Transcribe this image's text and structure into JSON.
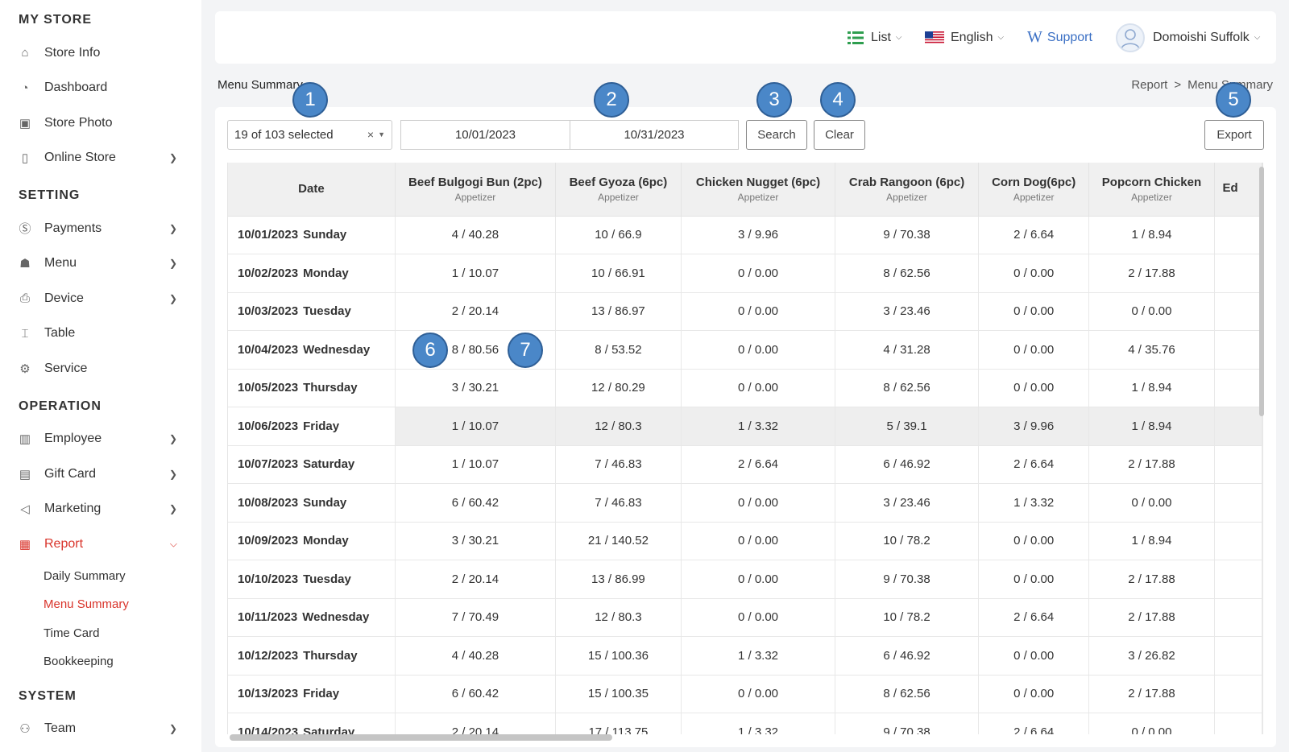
{
  "sidebar": {
    "sections": [
      {
        "title": "MY STORE",
        "items": [
          {
            "label": "Store Info",
            "icon": "store-icon",
            "chevron": false
          },
          {
            "label": "Dashboard",
            "icon": "dashboard-icon",
            "chevron": false
          },
          {
            "label": "Store Photo",
            "icon": "photo-icon",
            "chevron": false
          },
          {
            "label": "Online Store",
            "icon": "phone-icon",
            "chevron": true
          }
        ]
      },
      {
        "title": "SETTING",
        "items": [
          {
            "label": "Payments",
            "icon": "dollar-icon",
            "chevron": true
          },
          {
            "label": "Menu",
            "icon": "basket-icon",
            "chevron": true
          },
          {
            "label": "Device",
            "icon": "printer-icon",
            "chevron": true
          },
          {
            "label": "Table",
            "icon": "table-icon",
            "chevron": false
          },
          {
            "label": "Service",
            "icon": "gear-icon",
            "chevron": false
          }
        ]
      },
      {
        "title": "OPERATION",
        "items": [
          {
            "label": "Employee",
            "icon": "badge-icon",
            "chevron": true
          },
          {
            "label": "Gift Card",
            "icon": "gift-card-icon",
            "chevron": true
          },
          {
            "label": "Marketing",
            "icon": "megaphone-icon",
            "chevron": true
          },
          {
            "label": "Report",
            "icon": "report-icon",
            "chevron": true,
            "active": true,
            "expanded": true,
            "subitems": [
              {
                "label": "Daily Summary"
              },
              {
                "label": "Menu Summary",
                "active": true
              },
              {
                "label": "Time Card"
              },
              {
                "label": "Bookkeeping"
              }
            ]
          }
        ]
      },
      {
        "title": "SYSTEM",
        "items": [
          {
            "label": "Team",
            "icon": "team-icon",
            "chevron": true
          }
        ]
      }
    ]
  },
  "topbar": {
    "view_label": "List",
    "language_label": "English",
    "support_label": "Support",
    "user_name": "Domoishi Suffolk"
  },
  "page": {
    "title": "Menu Summary",
    "breadcrumb": [
      "Report",
      "Menu Summary"
    ],
    "breadcrumb_sep": ">"
  },
  "filters": {
    "items_selected": "19 of 103 selected",
    "clear_symbol": "×",
    "date_from": "10/01/2023",
    "date_to": "10/31/2023",
    "search_label": "Search",
    "clear_label": "Clear",
    "export_label": "Export"
  },
  "table": {
    "date_header": "Date",
    "columns": [
      {
        "name": "Beef Bulgogi Bun (2pc)",
        "category": "Appetizer"
      },
      {
        "name": "Beef Gyoza (6pc)",
        "category": "Appetizer"
      },
      {
        "name": "Chicken Nugget (6pc)",
        "category": "Appetizer"
      },
      {
        "name": "Crab Rangoon (6pc)",
        "category": "Appetizer"
      },
      {
        "name": "Corn Dog(6pc)",
        "category": "Appetizer"
      },
      {
        "name": "Popcorn Chicken",
        "category": "Appetizer"
      },
      {
        "name": "Ed",
        "category": ""
      }
    ],
    "rows": [
      {
        "date": "10/01/2023",
        "day": "Sunday",
        "cells": [
          "4 / 40.28",
          "10 / 66.9",
          "3 / 9.96",
          "9 / 70.38",
          "2 / 6.64",
          "1 / 8.94",
          ""
        ]
      },
      {
        "date": "10/02/2023",
        "day": "Monday",
        "cells": [
          "1 / 10.07",
          "10 / 66.91",
          "0 / 0.00",
          "8 / 62.56",
          "0 / 0.00",
          "2 / 17.88",
          ""
        ]
      },
      {
        "date": "10/03/2023",
        "day": "Tuesday",
        "cells": [
          "2 / 20.14",
          "13 / 86.97",
          "0 / 0.00",
          "3 / 23.46",
          "0 / 0.00",
          "0 / 0.00",
          ""
        ]
      },
      {
        "date": "10/04/2023",
        "day": "Wednesday",
        "cells": [
          "8 / 80.56",
          "8 / 53.52",
          "0 / 0.00",
          "4 / 31.28",
          "0 / 0.00",
          "4 / 35.76",
          ""
        ]
      },
      {
        "date": "10/05/2023",
        "day": "Thursday",
        "cells": [
          "3 / 30.21",
          "12 / 80.29",
          "0 / 0.00",
          "8 / 62.56",
          "0 / 0.00",
          "1 / 8.94",
          ""
        ]
      },
      {
        "date": "10/06/2023",
        "day": "Friday",
        "cells": [
          "1 / 10.07",
          "12 / 80.3",
          "1 / 3.32",
          "5 / 39.1",
          "3 / 9.96",
          "1 / 8.94",
          ""
        ],
        "hover": true
      },
      {
        "date": "10/07/2023",
        "day": "Saturday",
        "cells": [
          "1 / 10.07",
          "7 / 46.83",
          "2 / 6.64",
          "6 / 46.92",
          "2 / 6.64",
          "2 / 17.88",
          ""
        ]
      },
      {
        "date": "10/08/2023",
        "day": "Sunday",
        "cells": [
          "6 / 60.42",
          "7 / 46.83",
          "0 / 0.00",
          "3 / 23.46",
          "1 / 3.32",
          "0 / 0.00",
          ""
        ]
      },
      {
        "date": "10/09/2023",
        "day": "Monday",
        "cells": [
          "3 / 30.21",
          "21 / 140.52",
          "0 / 0.00",
          "10 / 78.2",
          "0 / 0.00",
          "1 / 8.94",
          ""
        ]
      },
      {
        "date": "10/10/2023",
        "day": "Tuesday",
        "cells": [
          "2 / 20.14",
          "13 / 86.99",
          "0 / 0.00",
          "9 / 70.38",
          "0 / 0.00",
          "2 / 17.88",
          ""
        ]
      },
      {
        "date": "10/11/2023",
        "day": "Wednesday",
        "cells": [
          "7 / 70.49",
          "12 / 80.3",
          "0 / 0.00",
          "10 / 78.2",
          "2 / 6.64",
          "2 / 17.88",
          ""
        ]
      },
      {
        "date": "10/12/2023",
        "day": "Thursday",
        "cells": [
          "4 / 40.28",
          "15 / 100.36",
          "1 / 3.32",
          "6 / 46.92",
          "0 / 0.00",
          "3 / 26.82",
          ""
        ]
      },
      {
        "date": "10/13/2023",
        "day": "Friday",
        "cells": [
          "6 / 60.42",
          "15 / 100.35",
          "0 / 0.00",
          "8 / 62.56",
          "0 / 0.00",
          "2 / 17.88",
          ""
        ]
      },
      {
        "date": "10/14/2023",
        "day": "Saturday",
        "cells": [
          "2 / 20.14",
          "17 / 113.75",
          "1 / 3.32",
          "9 / 70.38",
          "2 / 6.64",
          "0 / 0.00",
          ""
        ]
      }
    ]
  },
  "markers": [
    "1",
    "2",
    "3",
    "4",
    "5",
    "6",
    "7"
  ],
  "colors": {
    "accent": "#d9342b",
    "marker": "#4a87c8"
  }
}
